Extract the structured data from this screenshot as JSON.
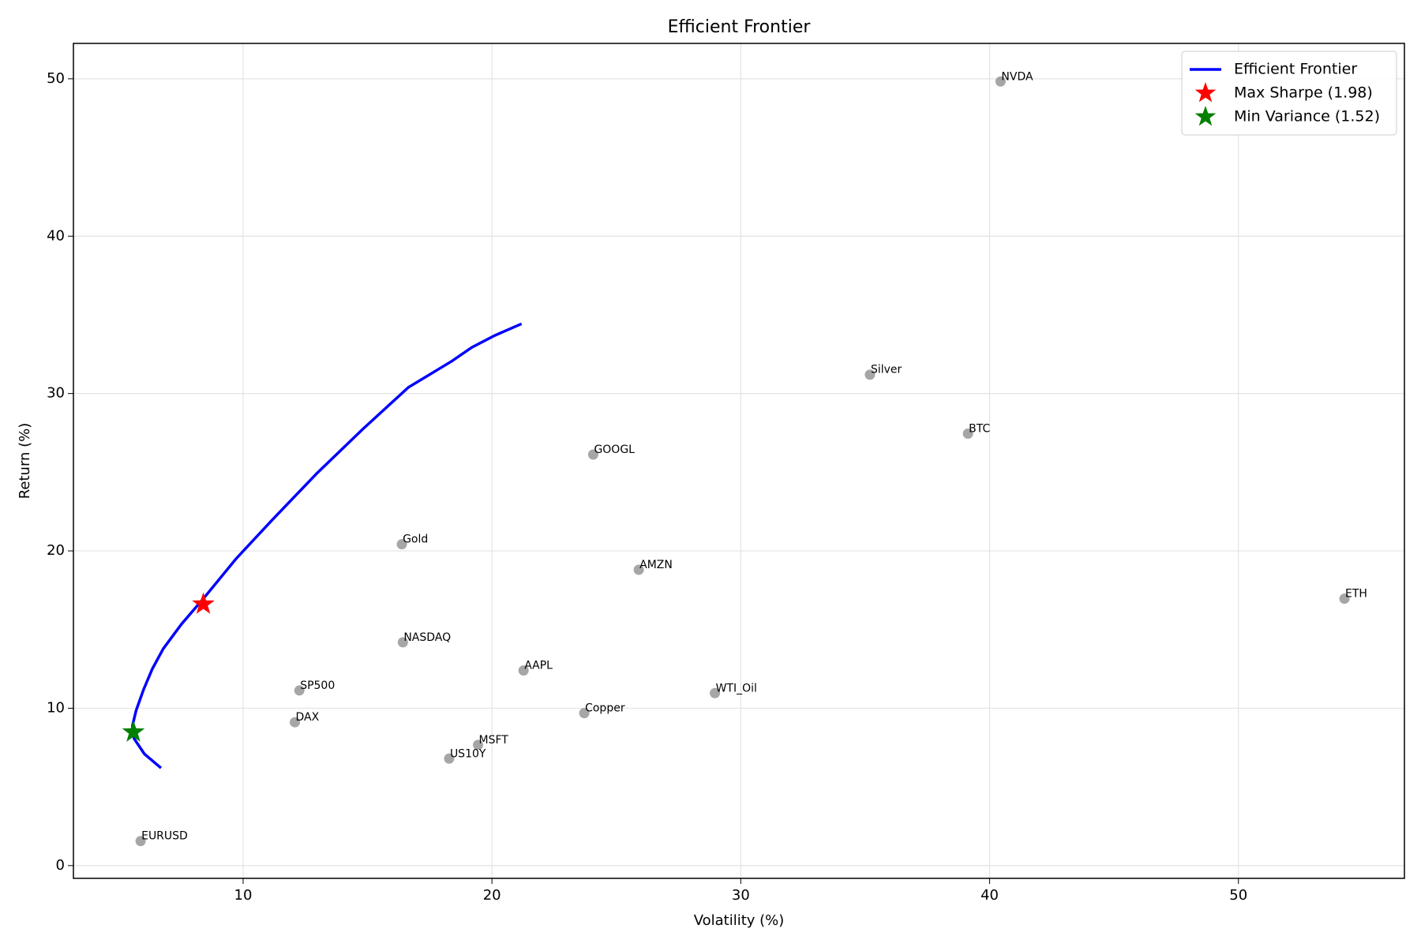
{
  "chart_data": {
    "type": "scatter",
    "title": "Efficient Frontier",
    "x_label": "Volatility (%)",
    "y_label": "Return (%)",
    "xlim": [
      3.18,
      56.67
    ],
    "ylim": [
      -0.81,
      52.25
    ],
    "xticks": [
      10,
      20,
      30,
      40,
      50
    ],
    "yticks": [
      0,
      10,
      20,
      30,
      40,
      50
    ],
    "grid": true,
    "legend": "upper right",
    "series": [
      {
        "name": "Efficient Frontier",
        "type": "line",
        "color": "blue",
        "x": [
          6.7,
          6.03,
          5.62,
          5.55,
          5.7,
          6.0,
          6.35,
          6.79,
          7.52,
          8.4,
          9.71,
          11.17,
          12.99,
          14.81,
          16.64,
          18.39,
          19.19,
          20.1,
          21.19
        ],
        "values": [
          6.2,
          7.1,
          8.07,
          8.88,
          9.86,
          11.19,
          12.5,
          13.78,
          15.34,
          16.96,
          19.49,
          21.97,
          24.97,
          27.74,
          30.39,
          32.06,
          32.93,
          33.68,
          34.43
        ]
      },
      {
        "name": "Max Sharpe (1.98)",
        "type": "star",
        "color": "red",
        "x": [
          8.4
        ],
        "values": [
          16.61
        ]
      },
      {
        "name": "Min Variance (1.52)",
        "type": "star",
        "color": "green",
        "x": [
          5.59
        ],
        "values": [
          8.48
        ]
      }
    ],
    "assets": {
      "color": "gray",
      "labels": [
        "NVDA",
        "Silver",
        "BTC",
        "GOOGL",
        "Gold",
        "AMZN",
        "ETH",
        "NASDAQ",
        "AAPL",
        "SP500",
        "WTI_Oil",
        "Copper",
        "DAX",
        "MSFT",
        "US10Y",
        "EURUSD"
      ],
      "x": [
        40.44,
        35.19,
        39.13,
        24.07,
        16.38,
        25.9,
        54.26,
        16.42,
        21.27,
        12.26,
        28.96,
        23.71,
        12.08,
        19.44,
        18.28,
        5.88
      ],
      "values": [
        49.83,
        31.2,
        27.45,
        26.12,
        20.42,
        18.8,
        16.96,
        14.19,
        12.4,
        11.13,
        10.96,
        9.69,
        9.11,
        7.67,
        6.8,
        1.56
      ]
    }
  }
}
